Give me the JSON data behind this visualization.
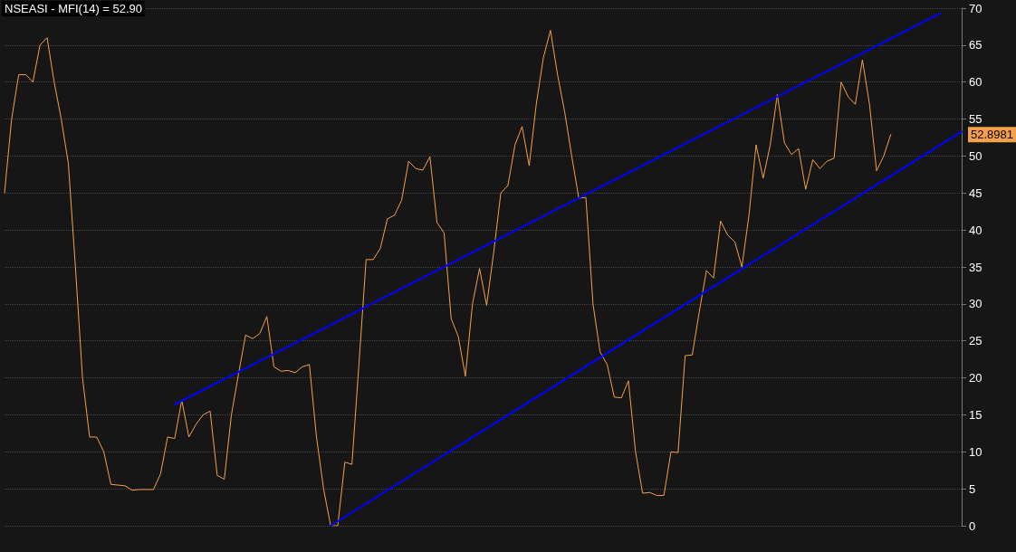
{
  "chart_data": {
    "type": "line",
    "title": "NSEASI - MFI(14) = 52.90",
    "categories": [
      null,
      null,
      null,
      null,
      null,
      null,
      null,
      null,
      null,
      null,
      null,
      null,
      null,
      null,
      null,
      null,
      null,
      null,
      null,
      null,
      null,
      null,
      null,
      null,
      null,
      null,
      null,
      null,
      null,
      null,
      null,
      null,
      null,
      null,
      null,
      null,
      null,
      null,
      null,
      null,
      null,
      null,
      null,
      null,
      null,
      null,
      null,
      null,
      null,
      null,
      null,
      null,
      null,
      null,
      null,
      null,
      null,
      null,
      null,
      null,
      null,
      null,
      null,
      null,
      null,
      null,
      null,
      null,
      null,
      null,
      null,
      null,
      null,
      null,
      null,
      null,
      null,
      null,
      null,
      null,
      null,
      null,
      null,
      null,
      null,
      null,
      null,
      null,
      null,
      null,
      null,
      null,
      null,
      null,
      null,
      null,
      null,
      null,
      null,
      null,
      null,
      null,
      null,
      null,
      null,
      null,
      null,
      null,
      null,
      null,
      null,
      null,
      null,
      null,
      null,
      null,
      null,
      null,
      null,
      null,
      null,
      null,
      null,
      null,
      null,
      null,
      null,
      null,
      null,
      null,
      null,
      null,
      null,
      null,
      null,
      null
    ],
    "series": [
      {
        "color": "#f5a04a",
        "values": [
          45,
          55,
          61,
          61,
          60,
          65,
          66,
          60,
          55,
          49,
          35,
          20,
          12,
          12,
          10,
          5.6,
          5.5,
          5.4,
          4.8,
          4.9,
          4.9,
          4.9,
          7,
          12,
          11.8,
          17,
          12,
          13.7,
          15,
          15.5,
          6.8,
          6.3,
          15,
          20.5,
          25.8,
          25.3,
          26,
          28.3,
          21.5,
          20.9,
          21,
          20.7,
          21.5,
          21.8,
          12,
          5,
          0,
          0,
          8.6,
          8.3,
          22,
          36,
          36,
          37.5,
          41.5,
          42,
          44,
          49.3,
          48.3,
          48.1,
          49.9,
          41,
          39.6,
          28,
          25.6,
          20.2,
          30,
          34.8,
          29.8,
          37,
          45,
          46,
          51.5,
          54,
          48.7,
          57,
          63.3,
          67,
          61,
          56,
          50,
          44.3,
          44.4,
          30,
          23.5,
          21.8,
          17.4,
          17.3,
          19.6,
          10,
          4.4,
          4.5,
          4.1,
          4.1,
          10,
          9.9,
          23,
          23.1,
          29,
          34.5,
          33.5,
          41.2,
          39.3,
          38.4,
          35,
          42,
          51.5,
          47,
          51.5,
          58.3,
          51.8,
          50.2,
          51,
          45.5,
          49.5,
          48.3,
          49.3,
          49.7,
          60,
          58,
          57,
          63,
          57,
          48,
          50,
          52.9,
          null,
          null,
          null,
          null,
          null,
          null,
          null,
          null,
          null,
          null
        ]
      },
      {
        "type": "line",
        "color": "#0000ff",
        "values": [
          null,
          null,
          null,
          null,
          null,
          null,
          null,
          null,
          null,
          null,
          null,
          null,
          null,
          null,
          null,
          null,
          null,
          null,
          null,
          null,
          null,
          null,
          null,
          null,
          16.4,
          null,
          null,
          null,
          null,
          null,
          null,
          null,
          null,
          null,
          null,
          null,
          null,
          null,
          null,
          null,
          null,
          null,
          null,
          null,
          null,
          null,
          null,
          null,
          null,
          null,
          null,
          null,
          null,
          null,
          null,
          null,
          null,
          null,
          null,
          null,
          null,
          null,
          null,
          null,
          null,
          null,
          null,
          null,
          null,
          null,
          null,
          null,
          null,
          null,
          null,
          null,
          null,
          null,
          null,
          null,
          null,
          null,
          null,
          null,
          null,
          null,
          null,
          null,
          null,
          null,
          null,
          null,
          null,
          null,
          null,
          null,
          null,
          null,
          null,
          null,
          null,
          null,
          null,
          null,
          null,
          null,
          null,
          null,
          null,
          null,
          null,
          null,
          null,
          null,
          null,
          null,
          null,
          null,
          null,
          null,
          null,
          null,
          null,
          null,
          null,
          null,
          null,
          null,
          null,
          null,
          null,
          null,
          69.3,
          null,
          null,
          null
        ]
      },
      {
        "type": "line",
        "color": "#0000ff",
        "values": [
          null,
          null,
          null,
          null,
          null,
          null,
          null,
          null,
          null,
          null,
          null,
          null,
          null,
          null,
          null,
          null,
          null,
          null,
          null,
          null,
          null,
          null,
          null,
          null,
          null,
          null,
          null,
          null,
          null,
          null,
          null,
          null,
          null,
          null,
          null,
          null,
          null,
          null,
          null,
          null,
          null,
          null,
          null,
          null,
          null,
          null,
          0,
          null,
          null,
          null,
          null,
          null,
          null,
          null,
          null,
          null,
          null,
          null,
          null,
          null,
          null,
          null,
          null,
          null,
          null,
          null,
          null,
          null,
          null,
          null,
          null,
          null,
          null,
          null,
          null,
          null,
          null,
          null,
          null,
          null,
          null,
          null,
          null,
          null,
          null,
          null,
          null,
          null,
          null,
          null,
          null,
          null,
          null,
          null,
          null,
          null,
          null,
          null,
          null,
          null,
          null,
          null,
          null,
          null,
          null,
          null,
          null,
          null,
          null,
          null,
          null,
          null,
          null,
          null,
          null,
          null,
          null,
          null,
          null,
          null,
          null,
          null,
          null,
          null,
          null,
          null,
          null,
          null,
          null,
          null,
          null,
          null,
          null,
          null,
          null,
          53.3
        ]
      }
    ],
    "ylim": [
      0,
      70
    ],
    "yticks": [
      0,
      5,
      10,
      15,
      20,
      25,
      30,
      35,
      40,
      45,
      50,
      55,
      60,
      65,
      70
    ],
    "grid": "y",
    "tick_labels": "y",
    "annotations": [
      "52.8981"
    ]
  }
}
